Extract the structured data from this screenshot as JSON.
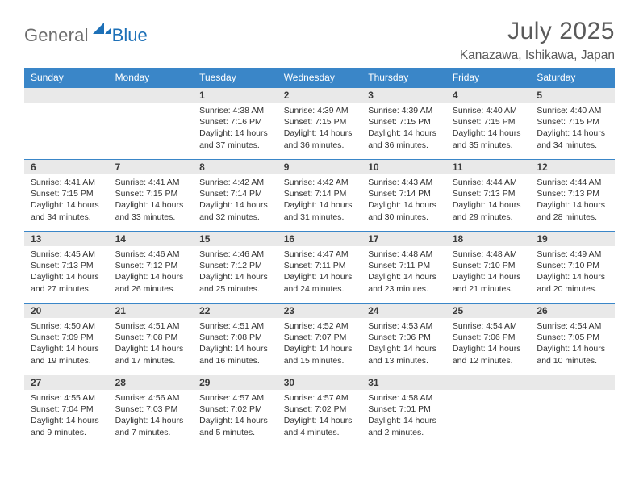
{
  "brand": {
    "text_general": "General",
    "text_blue": "Blue",
    "mark_color": "#1d70b7",
    "text_gray_color": "#6d6d6d"
  },
  "title": {
    "month_year": "July 2025",
    "location": "Kanazawa, Ishikawa, Japan"
  },
  "colors": {
    "header_bg": "#3a86c8",
    "header_text": "#ffffff",
    "daynum_bg": "#e9e9e9",
    "daynum_border": "#3a86c8",
    "body_text": "#333333",
    "page_bg": "#ffffff"
  },
  "weekdays": [
    "Sunday",
    "Monday",
    "Tuesday",
    "Wednesday",
    "Thursday",
    "Friday",
    "Saturday"
  ],
  "grid": [
    [
      null,
      null,
      {
        "n": "1",
        "sunrise": "Sunrise: 4:38 AM",
        "sunset": "Sunset: 7:16 PM",
        "daylight": "Daylight: 14 hours and 37 minutes."
      },
      {
        "n": "2",
        "sunrise": "Sunrise: 4:39 AM",
        "sunset": "Sunset: 7:15 PM",
        "daylight": "Daylight: 14 hours and 36 minutes."
      },
      {
        "n": "3",
        "sunrise": "Sunrise: 4:39 AM",
        "sunset": "Sunset: 7:15 PM",
        "daylight": "Daylight: 14 hours and 36 minutes."
      },
      {
        "n": "4",
        "sunrise": "Sunrise: 4:40 AM",
        "sunset": "Sunset: 7:15 PM",
        "daylight": "Daylight: 14 hours and 35 minutes."
      },
      {
        "n": "5",
        "sunrise": "Sunrise: 4:40 AM",
        "sunset": "Sunset: 7:15 PM",
        "daylight": "Daylight: 14 hours and 34 minutes."
      }
    ],
    [
      {
        "n": "6",
        "sunrise": "Sunrise: 4:41 AM",
        "sunset": "Sunset: 7:15 PM",
        "daylight": "Daylight: 14 hours and 34 minutes."
      },
      {
        "n": "7",
        "sunrise": "Sunrise: 4:41 AM",
        "sunset": "Sunset: 7:15 PM",
        "daylight": "Daylight: 14 hours and 33 minutes."
      },
      {
        "n": "8",
        "sunrise": "Sunrise: 4:42 AM",
        "sunset": "Sunset: 7:14 PM",
        "daylight": "Daylight: 14 hours and 32 minutes."
      },
      {
        "n": "9",
        "sunrise": "Sunrise: 4:42 AM",
        "sunset": "Sunset: 7:14 PM",
        "daylight": "Daylight: 14 hours and 31 minutes."
      },
      {
        "n": "10",
        "sunrise": "Sunrise: 4:43 AM",
        "sunset": "Sunset: 7:14 PM",
        "daylight": "Daylight: 14 hours and 30 minutes."
      },
      {
        "n": "11",
        "sunrise": "Sunrise: 4:44 AM",
        "sunset": "Sunset: 7:13 PM",
        "daylight": "Daylight: 14 hours and 29 minutes."
      },
      {
        "n": "12",
        "sunrise": "Sunrise: 4:44 AM",
        "sunset": "Sunset: 7:13 PM",
        "daylight": "Daylight: 14 hours and 28 minutes."
      }
    ],
    [
      {
        "n": "13",
        "sunrise": "Sunrise: 4:45 AM",
        "sunset": "Sunset: 7:13 PM",
        "daylight": "Daylight: 14 hours and 27 minutes."
      },
      {
        "n": "14",
        "sunrise": "Sunrise: 4:46 AM",
        "sunset": "Sunset: 7:12 PM",
        "daylight": "Daylight: 14 hours and 26 minutes."
      },
      {
        "n": "15",
        "sunrise": "Sunrise: 4:46 AM",
        "sunset": "Sunset: 7:12 PM",
        "daylight": "Daylight: 14 hours and 25 minutes."
      },
      {
        "n": "16",
        "sunrise": "Sunrise: 4:47 AM",
        "sunset": "Sunset: 7:11 PM",
        "daylight": "Daylight: 14 hours and 24 minutes."
      },
      {
        "n": "17",
        "sunrise": "Sunrise: 4:48 AM",
        "sunset": "Sunset: 7:11 PM",
        "daylight": "Daylight: 14 hours and 23 minutes."
      },
      {
        "n": "18",
        "sunrise": "Sunrise: 4:48 AM",
        "sunset": "Sunset: 7:10 PM",
        "daylight": "Daylight: 14 hours and 21 minutes."
      },
      {
        "n": "19",
        "sunrise": "Sunrise: 4:49 AM",
        "sunset": "Sunset: 7:10 PM",
        "daylight": "Daylight: 14 hours and 20 minutes."
      }
    ],
    [
      {
        "n": "20",
        "sunrise": "Sunrise: 4:50 AM",
        "sunset": "Sunset: 7:09 PM",
        "daylight": "Daylight: 14 hours and 19 minutes."
      },
      {
        "n": "21",
        "sunrise": "Sunrise: 4:51 AM",
        "sunset": "Sunset: 7:08 PM",
        "daylight": "Daylight: 14 hours and 17 minutes."
      },
      {
        "n": "22",
        "sunrise": "Sunrise: 4:51 AM",
        "sunset": "Sunset: 7:08 PM",
        "daylight": "Daylight: 14 hours and 16 minutes."
      },
      {
        "n": "23",
        "sunrise": "Sunrise: 4:52 AM",
        "sunset": "Sunset: 7:07 PM",
        "daylight": "Daylight: 14 hours and 15 minutes."
      },
      {
        "n": "24",
        "sunrise": "Sunrise: 4:53 AM",
        "sunset": "Sunset: 7:06 PM",
        "daylight": "Daylight: 14 hours and 13 minutes."
      },
      {
        "n": "25",
        "sunrise": "Sunrise: 4:54 AM",
        "sunset": "Sunset: 7:06 PM",
        "daylight": "Daylight: 14 hours and 12 minutes."
      },
      {
        "n": "26",
        "sunrise": "Sunrise: 4:54 AM",
        "sunset": "Sunset: 7:05 PM",
        "daylight": "Daylight: 14 hours and 10 minutes."
      }
    ],
    [
      {
        "n": "27",
        "sunrise": "Sunrise: 4:55 AM",
        "sunset": "Sunset: 7:04 PM",
        "daylight": "Daylight: 14 hours and 9 minutes."
      },
      {
        "n": "28",
        "sunrise": "Sunrise: 4:56 AM",
        "sunset": "Sunset: 7:03 PM",
        "daylight": "Daylight: 14 hours and 7 minutes."
      },
      {
        "n": "29",
        "sunrise": "Sunrise: 4:57 AM",
        "sunset": "Sunset: 7:02 PM",
        "daylight": "Daylight: 14 hours and 5 minutes."
      },
      {
        "n": "30",
        "sunrise": "Sunrise: 4:57 AM",
        "sunset": "Sunset: 7:02 PM",
        "daylight": "Daylight: 14 hours and 4 minutes."
      },
      {
        "n": "31",
        "sunrise": "Sunrise: 4:58 AM",
        "sunset": "Sunset: 7:01 PM",
        "daylight": "Daylight: 14 hours and 2 minutes."
      },
      null,
      null
    ]
  ]
}
